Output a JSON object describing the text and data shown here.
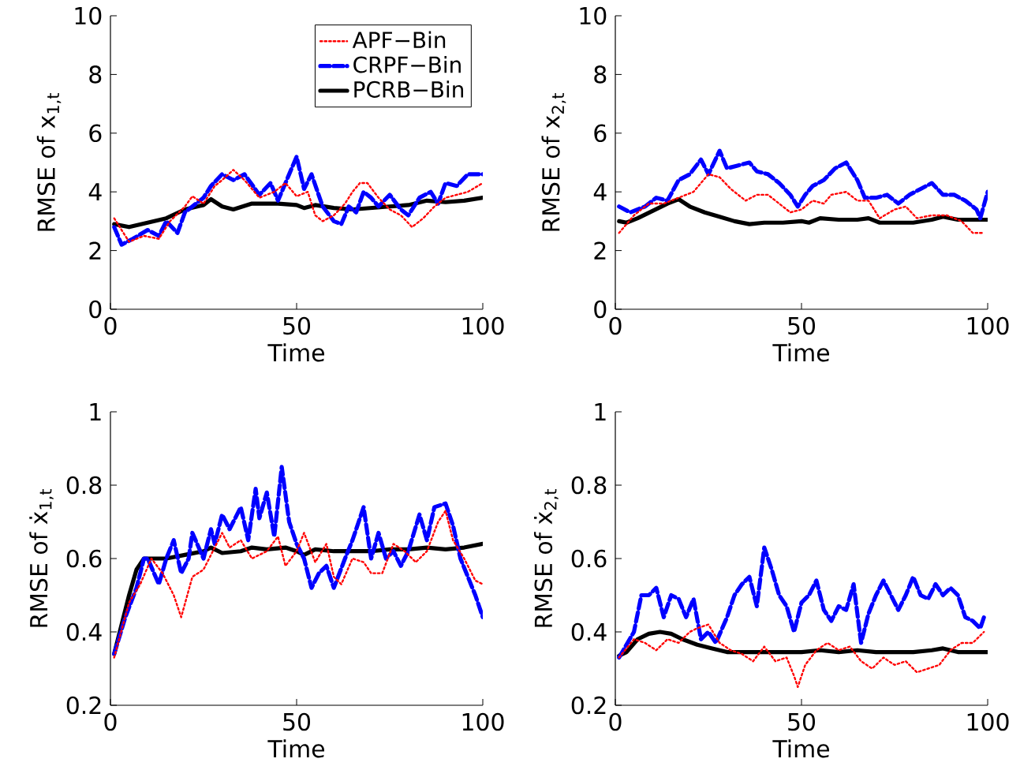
{
  "chart_data": [
    {
      "type": "line",
      "xlabel": "Time",
      "ylabel": "RMSE of x$_{1,t}$",
      "xlim": [
        0,
        100
      ],
      "ylim": [
        0,
        10
      ],
      "xticks": [
        0,
        50,
        100
      ],
      "yticks": [
        0,
        2,
        4,
        6,
        8,
        10
      ],
      "legend": "top right",
      "marker": "none",
      "series": [
        {
          "name": "APF−Bin",
          "color": "#ff0000",
          "line_style": "dotted",
          "x": [
            1,
            5,
            9,
            13,
            16,
            20,
            22,
            25,
            28,
            30,
            33,
            36,
            40,
            44,
            47,
            50,
            53,
            55,
            57,
            60,
            63,
            65,
            67,
            69,
            72,
            75,
            78,
            81,
            84,
            87,
            90,
            93,
            96,
            100
          ],
          "values": [
            3.1,
            2.3,
            2.5,
            2.4,
            3.0,
            3.5,
            3.85,
            3.6,
            4.2,
            4.4,
            4.75,
            4.4,
            3.8,
            4.0,
            4.3,
            3.85,
            4.0,
            3.2,
            3.0,
            3.2,
            3.6,
            4.0,
            4.3,
            4.3,
            3.8,
            3.4,
            3.2,
            2.8,
            3.1,
            3.5,
            3.8,
            3.9,
            4.0,
            4.3
          ]
        },
        {
          "name": "CRPF−Bin",
          "color": "#0000ff",
          "line_style": "dashed",
          "x": [
            1,
            3,
            6,
            10,
            13,
            15,
            18,
            20,
            25,
            27,
            30,
            33,
            36,
            40,
            43,
            45,
            48,
            50,
            52,
            54,
            57,
            60,
            62,
            64,
            66,
            68,
            70,
            72,
            75,
            78,
            80,
            83,
            86,
            88,
            90,
            93,
            96,
            100
          ],
          "values": [
            2.8,
            2.2,
            2.4,
            2.7,
            2.5,
            3.0,
            2.6,
            3.3,
            3.8,
            4.2,
            4.6,
            4.4,
            4.6,
            3.9,
            4.3,
            3.7,
            4.6,
            5.2,
            4.1,
            4.6,
            3.5,
            3.0,
            2.9,
            3.5,
            3.3,
            4.0,
            3.8,
            3.5,
            3.9,
            3.4,
            3.2,
            3.8,
            4.0,
            3.6,
            4.3,
            4.2,
            4.6,
            4.6
          ]
        },
        {
          "name": "PCRB−Bin",
          "color": "#000000",
          "line_style": "solid",
          "x": [
            1,
            5,
            10,
            15,
            20,
            25,
            27,
            30,
            33,
            38,
            45,
            50,
            52,
            55,
            60,
            65,
            70,
            75,
            80,
            85,
            90,
            95,
            100
          ],
          "values": [
            2.9,
            2.8,
            2.95,
            3.1,
            3.4,
            3.55,
            3.75,
            3.5,
            3.4,
            3.6,
            3.6,
            3.55,
            3.45,
            3.55,
            3.45,
            3.4,
            3.45,
            3.5,
            3.55,
            3.7,
            3.65,
            3.7,
            3.8
          ]
        }
      ]
    },
    {
      "type": "line",
      "xlabel": "Time",
      "ylabel": "RMSE of x$_{2,t}$",
      "xlim": [
        0,
        100
      ],
      "ylim": [
        0,
        10
      ],
      "xticks": [
        0,
        50,
        100
      ],
      "yticks": [
        0,
        2,
        4,
        6,
        8,
        10
      ],
      "marker": "none",
      "series": [
        {
          "color": "#ff0000",
          "line_style": "dotted",
          "x": [
            1,
            5,
            9,
            13,
            17,
            21,
            25,
            28,
            31,
            35,
            38,
            41,
            44,
            47,
            50,
            53,
            56,
            58,
            62,
            65,
            68,
            71,
            75,
            78,
            81,
            85,
            89,
            93,
            96,
            99
          ],
          "values": [
            2.6,
            3.2,
            3.6,
            3.6,
            3.8,
            4.0,
            4.6,
            4.5,
            4.1,
            3.7,
            3.9,
            3.9,
            3.6,
            3.3,
            3.4,
            3.7,
            3.6,
            3.9,
            4.0,
            3.7,
            3.7,
            3.1,
            3.4,
            3.5,
            3.1,
            3.2,
            3.2,
            3.0,
            2.6,
            2.6
          ]
        },
        {
          "color": "#0000ff",
          "line_style": "dashed",
          "x": [
            1,
            4,
            8,
            11,
            14,
            17,
            20,
            23,
            25,
            28,
            30,
            33,
            36,
            38,
            41,
            44,
            47,
            49,
            51,
            53,
            56,
            59,
            62,
            65,
            67,
            70,
            73,
            76,
            79,
            82,
            85,
            88,
            91,
            94,
            97,
            98,
            100
          ],
          "values": [
            3.5,
            3.3,
            3.5,
            3.8,
            3.7,
            4.4,
            4.6,
            5.1,
            4.6,
            5.4,
            4.8,
            4.9,
            5.0,
            4.7,
            4.6,
            4.3,
            3.9,
            3.5,
            3.9,
            4.2,
            4.4,
            4.8,
            5.0,
            4.4,
            3.8,
            3.8,
            3.9,
            3.6,
            3.9,
            4.1,
            4.3,
            3.9,
            3.9,
            3.7,
            3.4,
            3.1,
            4.0
          ]
        },
        {
          "color": "#000000",
          "line_style": "solid",
          "x": [
            1,
            3,
            6,
            10,
            14,
            17,
            20,
            24,
            28,
            32,
            36,
            40,
            45,
            50,
            52,
            55,
            60,
            65,
            68,
            71,
            75,
            80,
            85,
            88,
            92,
            96,
            100
          ],
          "values": [
            3.0,
            2.95,
            3.1,
            3.35,
            3.6,
            3.75,
            3.5,
            3.3,
            3.15,
            3.0,
            2.9,
            2.95,
            2.95,
            3.0,
            2.95,
            3.1,
            3.05,
            3.05,
            3.1,
            2.95,
            2.95,
            2.95,
            3.05,
            3.15,
            3.05,
            3.05,
            3.05
          ]
        }
      ]
    },
    {
      "type": "line",
      "xlabel": "Time",
      "ylabel": "RMSE of ẋ$_{1,t}$",
      "xlim": [
        0,
        100
      ],
      "ylim": [
        0.2,
        1
      ],
      "xticks": [
        0,
        50,
        100
      ],
      "yticks": [
        0.2,
        0.4,
        0.6,
        0.8,
        1
      ],
      "marker": "none",
      "series": [
        {
          "color": "#ff0000",
          "line_style": "dotted",
          "x": [
            1,
            5,
            8,
            11,
            14,
            17,
            19,
            22,
            25,
            28,
            30,
            32,
            35,
            38,
            42,
            45,
            47,
            50,
            52,
            55,
            58,
            60,
            62,
            65,
            68,
            70,
            73,
            76,
            79,
            82,
            85,
            88,
            90,
            92,
            95,
            98,
            100
          ],
          "values": [
            0.33,
            0.48,
            0.53,
            0.6,
            0.56,
            0.5,
            0.44,
            0.55,
            0.57,
            0.63,
            0.67,
            0.63,
            0.65,
            0.6,
            0.62,
            0.66,
            0.58,
            0.62,
            0.67,
            0.59,
            0.64,
            0.55,
            0.53,
            0.6,
            0.59,
            0.56,
            0.56,
            0.64,
            0.62,
            0.59,
            0.62,
            0.7,
            0.73,
            0.65,
            0.6,
            0.54,
            0.53
          ]
        },
        {
          "color": "#0000ff",
          "line_style": "dashed",
          "x": [
            1,
            4,
            7,
            9,
            10,
            13,
            15,
            17,
            19,
            21,
            22,
            25,
            27,
            28,
            30,
            32,
            35,
            37,
            39,
            40,
            42,
            44,
            46,
            48,
            50,
            52,
            54,
            56,
            58,
            60,
            63,
            65,
            68,
            70,
            72,
            74,
            76,
            78,
            80,
            83,
            85,
            87,
            90,
            92,
            94,
            96,
            98,
            100
          ],
          "values": [
            0.34,
            0.44,
            0.52,
            0.6,
            0.6,
            0.53,
            0.6,
            0.65,
            0.56,
            0.6,
            0.67,
            0.6,
            0.68,
            0.64,
            0.72,
            0.68,
            0.74,
            0.65,
            0.79,
            0.71,
            0.78,
            0.66,
            0.85,
            0.7,
            0.64,
            0.6,
            0.52,
            0.56,
            0.58,
            0.52,
            0.6,
            0.65,
            0.74,
            0.6,
            0.67,
            0.6,
            0.62,
            0.58,
            0.62,
            0.72,
            0.65,
            0.74,
            0.75,
            0.69,
            0.6,
            0.55,
            0.5,
            0.44
          ]
        },
        {
          "color": "#000000",
          "line_style": "solid",
          "x": [
            1,
            3,
            5,
            7,
            9,
            12,
            15,
            20,
            25,
            27,
            30,
            35,
            38,
            42,
            47,
            50,
            52,
            55,
            60,
            65,
            70,
            75,
            80,
            85,
            90,
            95,
            100
          ],
          "values": [
            0.34,
            0.42,
            0.5,
            0.57,
            0.6,
            0.6,
            0.6,
            0.61,
            0.62,
            0.63,
            0.615,
            0.62,
            0.63,
            0.625,
            0.63,
            0.62,
            0.61,
            0.625,
            0.62,
            0.62,
            0.62,
            0.625,
            0.625,
            0.63,
            0.625,
            0.63,
            0.64
          ]
        }
      ]
    },
    {
      "type": "line",
      "xlabel": "Time",
      "ylabel": "RMSE of ẋ$_{2,t}$",
      "xlim": [
        0,
        100
      ],
      "ylim": [
        0.2,
        1
      ],
      "xticks": [
        0,
        50,
        100
      ],
      "yticks": [
        0.2,
        0.4,
        0.6,
        0.8,
        1
      ],
      "marker": "none",
      "series": [
        {
          "color": "#ff0000",
          "line_style": "dotted",
          "x": [
            1,
            5,
            8,
            11,
            14,
            17,
            20,
            22,
            25,
            28,
            31,
            34,
            37,
            40,
            43,
            46,
            48,
            49,
            51,
            54,
            57,
            60,
            63,
            66,
            69,
            72,
            75,
            78,
            81,
            84,
            87,
            90,
            93,
            96,
            99
          ],
          "values": [
            0.33,
            0.38,
            0.37,
            0.35,
            0.38,
            0.37,
            0.4,
            0.41,
            0.42,
            0.37,
            0.35,
            0.34,
            0.32,
            0.36,
            0.32,
            0.33,
            0.28,
            0.25,
            0.31,
            0.35,
            0.37,
            0.35,
            0.36,
            0.32,
            0.3,
            0.33,
            0.31,
            0.32,
            0.29,
            0.3,
            0.31,
            0.35,
            0.37,
            0.37,
            0.4
          ]
        },
        {
          "color": "#0000ff",
          "line_style": "dashed",
          "x": [
            1,
            5,
            7,
            9,
            11,
            13,
            15,
            17,
            19,
            21,
            23,
            25,
            27,
            30,
            32,
            34,
            36,
            38,
            40,
            42,
            44,
            46,
            48,
            50,
            52,
            54,
            56,
            58,
            60,
            62,
            64,
            66,
            68,
            70,
            72,
            74,
            76,
            78,
            80,
            82,
            84,
            86,
            88,
            90,
            92,
            94,
            96,
            98,
            99
          ],
          "values": [
            0.33,
            0.4,
            0.5,
            0.5,
            0.52,
            0.44,
            0.5,
            0.49,
            0.44,
            0.49,
            0.38,
            0.4,
            0.37,
            0.44,
            0.5,
            0.53,
            0.55,
            0.47,
            0.63,
            0.57,
            0.5,
            0.47,
            0.4,
            0.48,
            0.5,
            0.54,
            0.46,
            0.43,
            0.47,
            0.46,
            0.53,
            0.37,
            0.45,
            0.5,
            0.54,
            0.5,
            0.46,
            0.5,
            0.55,
            0.5,
            0.49,
            0.53,
            0.5,
            0.52,
            0.5,
            0.44,
            0.43,
            0.41,
            0.44
          ]
        },
        {
          "color": "#000000",
          "line_style": "solid",
          "x": [
            1,
            3,
            6,
            9,
            12,
            15,
            18,
            22,
            26,
            30,
            35,
            40,
            45,
            50,
            55,
            60,
            65,
            70,
            75,
            80,
            85,
            88,
            92,
            96,
            100
          ],
          "values": [
            0.335,
            0.345,
            0.38,
            0.395,
            0.4,
            0.395,
            0.38,
            0.365,
            0.355,
            0.345,
            0.345,
            0.345,
            0.345,
            0.345,
            0.35,
            0.345,
            0.35,
            0.345,
            0.345,
            0.345,
            0.35,
            0.355,
            0.345,
            0.345,
            0.345
          ]
        }
      ]
    }
  ]
}
